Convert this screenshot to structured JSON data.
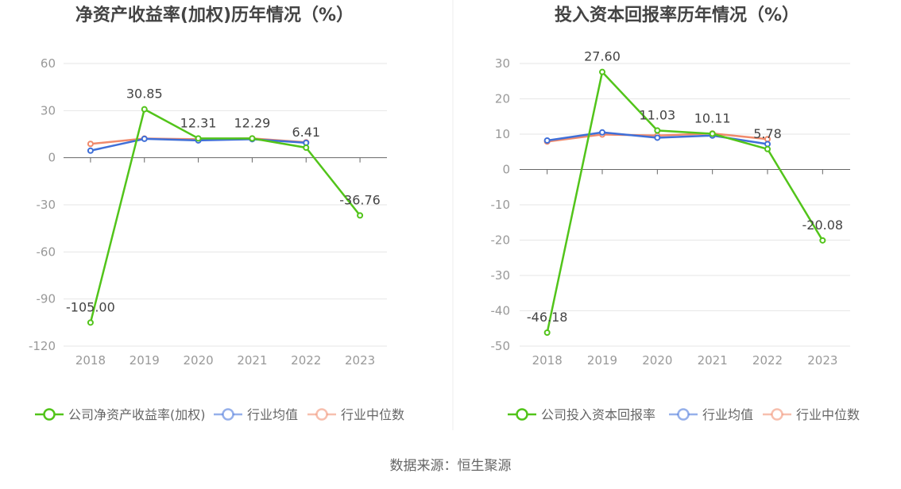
{
  "chart_data": [
    {
      "type": "line",
      "title": "净资产收益率(加权)历年情况（%）",
      "categories": [
        "2018",
        "2019",
        "2020",
        "2021",
        "2022",
        "2023"
      ],
      "yticks": [
        60,
        30,
        0,
        -30,
        -60,
        -90,
        -120
      ],
      "ylim": [
        -120,
        60
      ],
      "grid": true,
      "legend_position": "bottom",
      "series": [
        {
          "name": "公司净资产收益率(加权)",
          "color": "#52c41a",
          "values": [
            -105.0,
            30.85,
            12.31,
            12.29,
            6.41,
            -36.76
          ],
          "labels": [
            "-105.00",
            "30.85",
            "12.31",
            "12.29",
            "6.41",
            "-36.76"
          ]
        },
        {
          "name": "行业均值",
          "color": "#3f6fd8",
          "values": [
            4.5,
            12.0,
            11.0,
            11.8,
            9.5,
            null
          ]
        },
        {
          "name": "行业中位数",
          "color": "#f08a6c",
          "values": [
            8.8,
            12.2,
            11.8,
            12.3,
            9.8,
            null
          ]
        }
      ]
    },
    {
      "type": "line",
      "title": "投入资本回报率历年情况（%）",
      "categories": [
        "2018",
        "2019",
        "2020",
        "2021",
        "2022",
        "2023"
      ],
      "yticks": [
        30,
        20,
        10,
        0,
        -10,
        -20,
        -30,
        -40,
        -50
      ],
      "ylim": [
        -50,
        30
      ],
      "grid": true,
      "legend_position": "bottom",
      "series": [
        {
          "name": "公司投入资本回报率",
          "color": "#52c41a",
          "values": [
            -46.18,
            27.6,
            11.03,
            10.11,
            5.78,
            -20.08
          ],
          "labels": [
            "-46.18",
            "27.60",
            "11.03",
            "10.11",
            "5.78",
            "-20.08"
          ]
        },
        {
          "name": "行业均值",
          "color": "#3f6fd8",
          "values": [
            8.2,
            10.5,
            9.0,
            9.6,
            7.2,
            null
          ]
        },
        {
          "name": "行业中位数",
          "color": "#f08a6c",
          "values": [
            7.9,
            9.9,
            9.6,
            10.2,
            8.6,
            null
          ]
        }
      ]
    }
  ],
  "footer": {
    "source": "数据来源：恒生聚源"
  }
}
